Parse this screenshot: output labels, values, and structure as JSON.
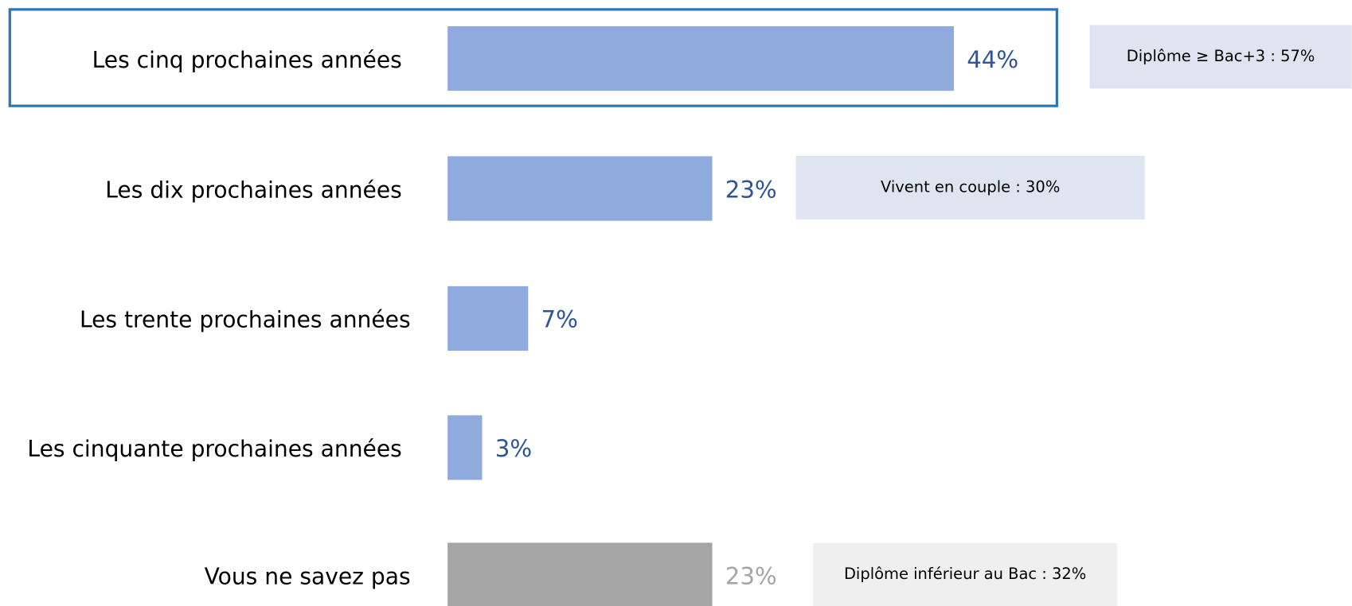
{
  "chart_data": {
    "type": "bar",
    "orientation": "horizontal",
    "categories": [
      "Les cinq prochaines années",
      "Les dix prochaines années",
      "Les trente prochaines années",
      "Les cinquante prochaines années",
      "Vous ne savez pas"
    ],
    "values": [
      44,
      23,
      7,
      3,
      23
    ],
    "value_labels": [
      "44%",
      "23%",
      "7%",
      "3%",
      "23%"
    ],
    "colors": [
      "#8faadc",
      "#8faadc",
      "#8faadc",
      "#8faadc",
      "#a5a5a5"
    ],
    "label_colors": [
      "#2f5597",
      "#2f5597",
      "#2f5597",
      "#2f5597",
      "#a5a5a5"
    ],
    "annotations": [
      "Diplôme ≥ Bac+3 : 57%",
      "Vivent en couple : 30%",
      null,
      null,
      "Diplôme inférieur au Bac : 32%"
    ],
    "annotation_colors": [
      "#dfe5f0",
      "#dfe5f0",
      null,
      null,
      "#efefef"
    ]
  }
}
